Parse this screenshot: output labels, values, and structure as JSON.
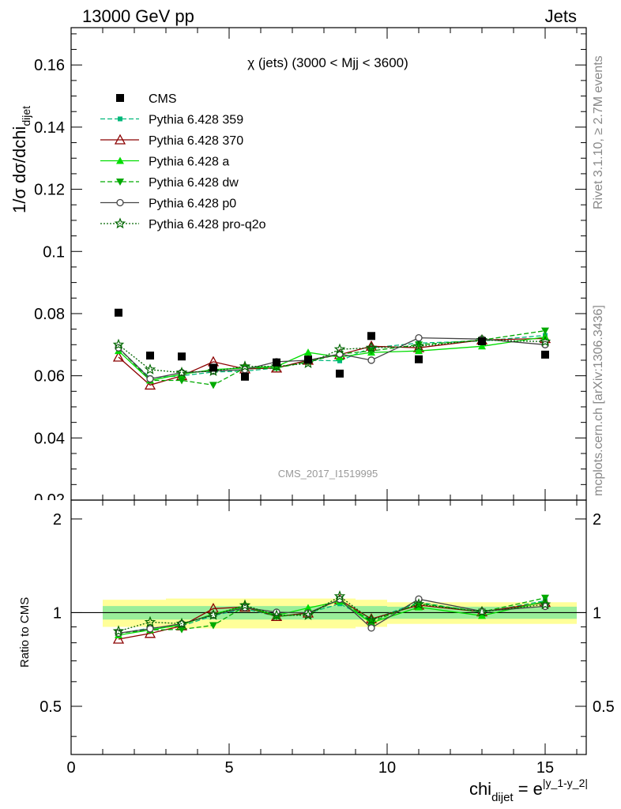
{
  "header": {
    "left": "13000 GeV pp",
    "right": "Jets"
  },
  "side": {
    "rivet": "Rivet 3.1.10, ≥ 2.7M events",
    "mcplots": "mcplots.cern.ch [arXiv:1306.3436]"
  },
  "chart_data": {
    "type": "scatter",
    "title": "χ (jets) (3000 < Mjj < 3600)",
    "watermark": "CMS_2017_I1519995",
    "ylabel_main": "1/σ dσ/dchi",
    "ylabel_main_sub": "dijet",
    "ylabel_ratio": "Ratio to CMS",
    "xlabel": "chi",
    "xlabel_sub": "dijet",
    "xlabel_eq": " = e",
    "xlabel_sup": "|y_1-y_2|",
    "xlim": [
      0,
      16.3
    ],
    "ylim_main": [
      0.02,
      0.172
    ],
    "ylim_ratio": [
      0.35,
      2.3
    ],
    "x_ticks": [
      0,
      5,
      10,
      15
    ],
    "y_ticks_main": [
      0.04,
      0.06,
      0.08,
      0.1,
      0.12,
      0.14,
      0.16
    ],
    "y_ticks_main_labels": [
      "0.04",
      "0.06",
      "0.08",
      "0.1",
      "0.12",
      "0.14",
      "0.16"
    ],
    "y_bottom_cut_label": "0.02",
    "y_ticks_ratio": [
      0.5,
      1,
      2
    ],
    "y_ticks_ratio_labels": [
      "0.5",
      "1",
      "2"
    ],
    "x": [
      1.5,
      2.5,
      3.5,
      4.5,
      5.5,
      6.5,
      7.5,
      8.5,
      9.5,
      11,
      13,
      15
    ],
    "bins": [
      [
        1,
        2
      ],
      [
        2,
        3
      ],
      [
        3,
        4
      ],
      [
        4,
        5
      ],
      [
        5,
        6
      ],
      [
        6,
        7
      ],
      [
        7,
        8
      ],
      [
        8,
        9
      ],
      [
        9,
        10
      ],
      [
        10,
        12
      ],
      [
        12,
        14
      ],
      [
        14,
        16
      ]
    ],
    "band_inner": [
      0.05,
      0.05,
      0.05,
      0.05,
      0.05,
      0.05,
      0.05,
      0.05,
      0.05,
      0.045,
      0.045,
      0.045
    ],
    "band_outer": [
      0.1,
      0.1,
      0.11,
      0.11,
      0.11,
      0.11,
      0.11,
      0.11,
      0.1,
      0.08,
      0.08,
      0.08
    ],
    "legend_position": "top-left",
    "series": [
      {
        "name": "CMS",
        "color": "#000000",
        "marker": "square",
        "dash": "none",
        "values": [
          0.0803,
          0.0665,
          0.0662,
          0.0626,
          0.0597,
          0.0643,
          0.0652,
          0.0607,
          0.0728,
          0.0653,
          0.0711,
          0.0668
        ]
      },
      {
        "name": "Pythia 6.428 359",
        "color": "#00b87a",
        "marker": "smallsquare",
        "dash": "6,3",
        "values": [
          0.0688,
          0.0593,
          0.06,
          0.0612,
          0.0615,
          0.0625,
          0.065,
          0.0648,
          0.069,
          0.0705,
          0.0712,
          0.073
        ]
      },
      {
        "name": "Pythia 6.428 370",
        "color": "#8b0000",
        "marker": "triangle-open",
        "dash": "none",
        "values": [
          0.066,
          0.057,
          0.06,
          0.0645,
          0.0622,
          0.0625,
          0.065,
          0.0668,
          0.0695,
          0.069,
          0.0715,
          0.072
        ]
      },
      {
        "name": "Pythia 6.428 a",
        "color": "#00dd00",
        "marker": "triangle",
        "dash": "none",
        "values": [
          0.068,
          0.0585,
          0.0605,
          0.062,
          0.0625,
          0.063,
          0.0675,
          0.066,
          0.0675,
          0.068,
          0.0695,
          0.0725
        ]
      },
      {
        "name": "Pythia 6.428 dw",
        "color": "#00aa00",
        "marker": "triangle-down",
        "dash": "6,3",
        "values": [
          0.069,
          0.0585,
          0.0585,
          0.057,
          0.0625,
          0.0625,
          0.0645,
          0.067,
          0.068,
          0.07,
          0.0715,
          0.0745
        ]
      },
      {
        "name": "Pythia 6.428 p0",
        "color": "#444444",
        "marker": "circle-open",
        "dash": "none",
        "values": [
          0.069,
          0.059,
          0.061,
          0.0615,
          0.062,
          0.0645,
          0.065,
          0.067,
          0.065,
          0.0722,
          0.0718,
          0.07
        ]
      },
      {
        "name": "Pythia 6.428 pro-q2o",
        "color": "#006600",
        "marker": "star-open",
        "dash": "2,2",
        "values": [
          0.07,
          0.062,
          0.061,
          0.0615,
          0.063,
          0.063,
          0.064,
          0.0685,
          0.069,
          0.0695,
          0.0715,
          0.071
        ]
      }
    ]
  }
}
